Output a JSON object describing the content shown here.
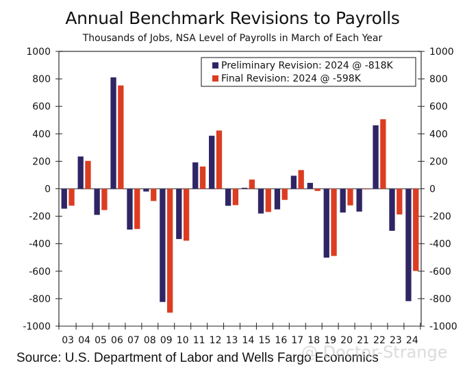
{
  "chart_data": {
    "type": "bar",
    "title": "Annual Benchmark Revisions to Payrolls",
    "subtitle": "Thousands of Jobs, NSA Level of Payrolls in March of Each Year",
    "xlabel": "",
    "ylabel": "",
    "ylim": [
      -1000,
      1000
    ],
    "yticks": [
      1000,
      800,
      600,
      400,
      200,
      0,
      -200,
      -400,
      -600,
      -800,
      -1000
    ],
    "categories": [
      "03",
      "04",
      "05",
      "06",
      "07",
      "08",
      "09",
      "10",
      "11",
      "12",
      "13",
      "14",
      "15",
      "16",
      "17",
      "18",
      "19",
      "20",
      "21",
      "22",
      "23",
      "24"
    ],
    "series": [
      {
        "name": "Preliminary Revision: 2024 @ -818K",
        "color": "#2f2565",
        "values": [
          -145,
          235,
          -190,
          811,
          -297,
          -20,
          -824,
          -366,
          192,
          386,
          -124,
          7,
          -180,
          -150,
          95,
          43,
          -501,
          -173,
          -166,
          462,
          -306,
          -818
        ]
      },
      {
        "name": "Final Revision: 2024 @ -598K",
        "color": "#dc3d22",
        "values": [
          -123,
          203,
          -155,
          752,
          -293,
          -89,
          -902,
          -378,
          162,
          424,
          -119,
          67,
          -169,
          -81,
          136,
          -16,
          -489,
          -121,
          -3,
          506,
          -187,
          -598
        ]
      }
    ],
    "legend_position": "top-right",
    "grid": false,
    "dual_y_axis": true
  },
  "source": "Source: U.S. Department of Labor and Wells Fargo Economics",
  "watermark": "@ Doctor-Strange"
}
